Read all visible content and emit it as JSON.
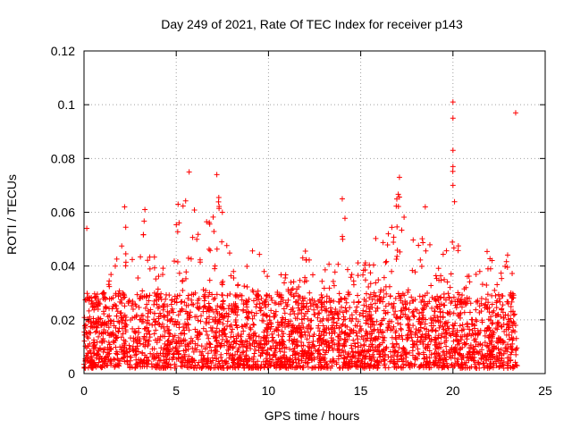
{
  "chart_data": {
    "type": "scatter",
    "title": "Day 249 of 2021, Rate Of TEC Index for receiver p143",
    "xlabel": "GPS time / hours",
    "ylabel": "ROTI / TECUs",
    "xlim": [
      0,
      25
    ],
    "ylim": [
      0,
      0.12
    ],
    "x_ticks": [
      0,
      5,
      10,
      15,
      20,
      25
    ],
    "x_tick_labels": [
      "0",
      "5",
      "10",
      "15",
      "20",
      "25"
    ],
    "y_ticks": [
      0,
      0.02,
      0.04,
      0.06,
      0.08,
      0.1,
      0.12
    ],
    "y_tick_labels": [
      "0",
      "0.02",
      "0.04",
      "0.06",
      "0.08",
      "0.1",
      "0.12"
    ],
    "grid": true,
    "marker": "+",
    "color": "#ff0000",
    "series": [
      {
        "name": "ROTI",
        "x_range": [
          0,
          23.5
        ],
        "typical_band": [
          0.002,
          0.025
        ],
        "notable_points": [
          {
            "x": 0.15,
            "y": 0.054
          },
          {
            "x": 2.2,
            "y": 0.062
          },
          {
            "x": 3.3,
            "y": 0.061
          },
          {
            "x": 5.1,
            "y": 0.063
          },
          {
            "x": 5.7,
            "y": 0.075
          },
          {
            "x": 7.2,
            "y": 0.074
          },
          {
            "x": 7.5,
            "y": 0.06
          },
          {
            "x": 14.0,
            "y": 0.065
          },
          {
            "x": 17.1,
            "y": 0.073
          },
          {
            "x": 18.5,
            "y": 0.062
          },
          {
            "x": 20.0,
            "y": 0.101
          },
          {
            "x": 20.0,
            "y": 0.095
          },
          {
            "x": 20.0,
            "y": 0.083
          },
          {
            "x": 20.0,
            "y": 0.077
          },
          {
            "x": 20.0,
            "y": 0.07
          },
          {
            "x": 23.4,
            "y": 0.097
          }
        ]
      }
    ]
  }
}
